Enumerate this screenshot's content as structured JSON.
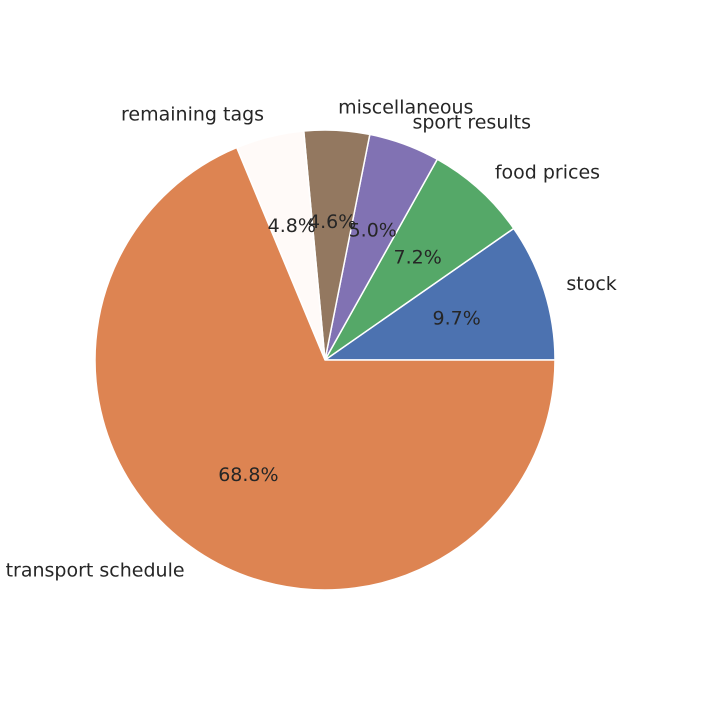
{
  "chart_data": {
    "type": "pie",
    "title": "",
    "start_angle_deg": 0,
    "direction": "counterclockwise",
    "legend": "none",
    "slices": [
      {
        "label": "stock",
        "value": 9.7,
        "pct_label": "9.7%",
        "color": "#4c72b0"
      },
      {
        "label": "food prices",
        "value": 7.2,
        "pct_label": "7.2%",
        "color": "#55a868"
      },
      {
        "label": "sport results",
        "value": 5.0,
        "pct_label": "5.0%",
        "color": "#8172b3"
      },
      {
        "label": "miscellaneous",
        "value": 4.6,
        "pct_label": "4.6%",
        "color": "#937860"
      },
      {
        "label": "remaining tags",
        "value": 4.8,
        "pct_label": "4.8%",
        "color": "#fffaf8"
      },
      {
        "label": "transport schedule",
        "value": 68.8,
        "pct_label": "68.8%",
        "color": "#dd8452"
      }
    ]
  }
}
